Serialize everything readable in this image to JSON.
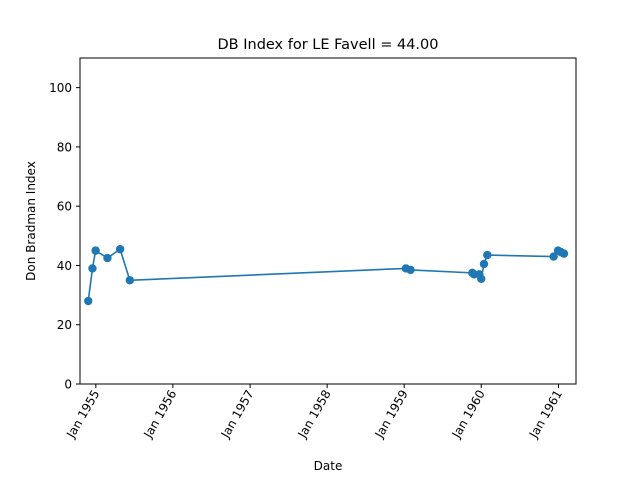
{
  "chart_data": {
    "type": "line",
    "title": "DB Index for LE Favell = 44.00",
    "xlabel": "Date",
    "ylabel": "Don Bradman Index",
    "ylim": [
      0,
      110
    ],
    "xlim": [
      "1954-10-18",
      "1961-03-25"
    ],
    "yticks": [
      0,
      20,
      40,
      60,
      80,
      100
    ],
    "xticks": [
      {
        "date": "1955-01-01",
        "label": "Jan 1955"
      },
      {
        "date": "1956-01-01",
        "label": "Jan 1956"
      },
      {
        "date": "1957-01-01",
        "label": "Jan 1957"
      },
      {
        "date": "1958-01-01",
        "label": "Jan 1958"
      },
      {
        "date": "1959-01-01",
        "label": "Jan 1959"
      },
      {
        "date": "1960-01-01",
        "label": "Jan 1960"
      },
      {
        "date": "1961-01-01",
        "label": "Jan 1961"
      }
    ],
    "grid": false,
    "color": "#1f77b4",
    "series": [
      {
        "points": [
          {
            "x": "1954-11-26",
            "y": 28.0
          },
          {
            "x": "1954-12-16",
            "y": 39.0
          },
          {
            "x": "1954-12-31",
            "y": 45.0
          },
          {
            "x": "1955-02-25",
            "y": 42.5
          },
          {
            "x": "1955-04-26",
            "y": 45.5
          },
          {
            "x": "1955-06-11",
            "y": 35.0
          },
          {
            "x": "1959-01-09",
            "y": 39.0
          },
          {
            "x": "1959-01-31",
            "y": 38.5
          },
          {
            "x": "1959-11-20",
            "y": 37.5
          },
          {
            "x": "1959-11-28",
            "y": 37.0
          },
          {
            "x": "1959-12-23",
            "y": 37.0
          },
          {
            "x": "1960-01-01",
            "y": 35.5
          },
          {
            "x": "1960-01-14",
            "y": 40.5
          },
          {
            "x": "1960-01-30",
            "y": 43.5
          },
          {
            "x": "1960-12-09",
            "y": 43.0
          },
          {
            "x": "1960-12-30",
            "y": 45.0
          },
          {
            "x": "1961-01-13",
            "y": 44.5
          },
          {
            "x": "1961-01-27",
            "y": 44.0
          }
        ]
      }
    ]
  }
}
